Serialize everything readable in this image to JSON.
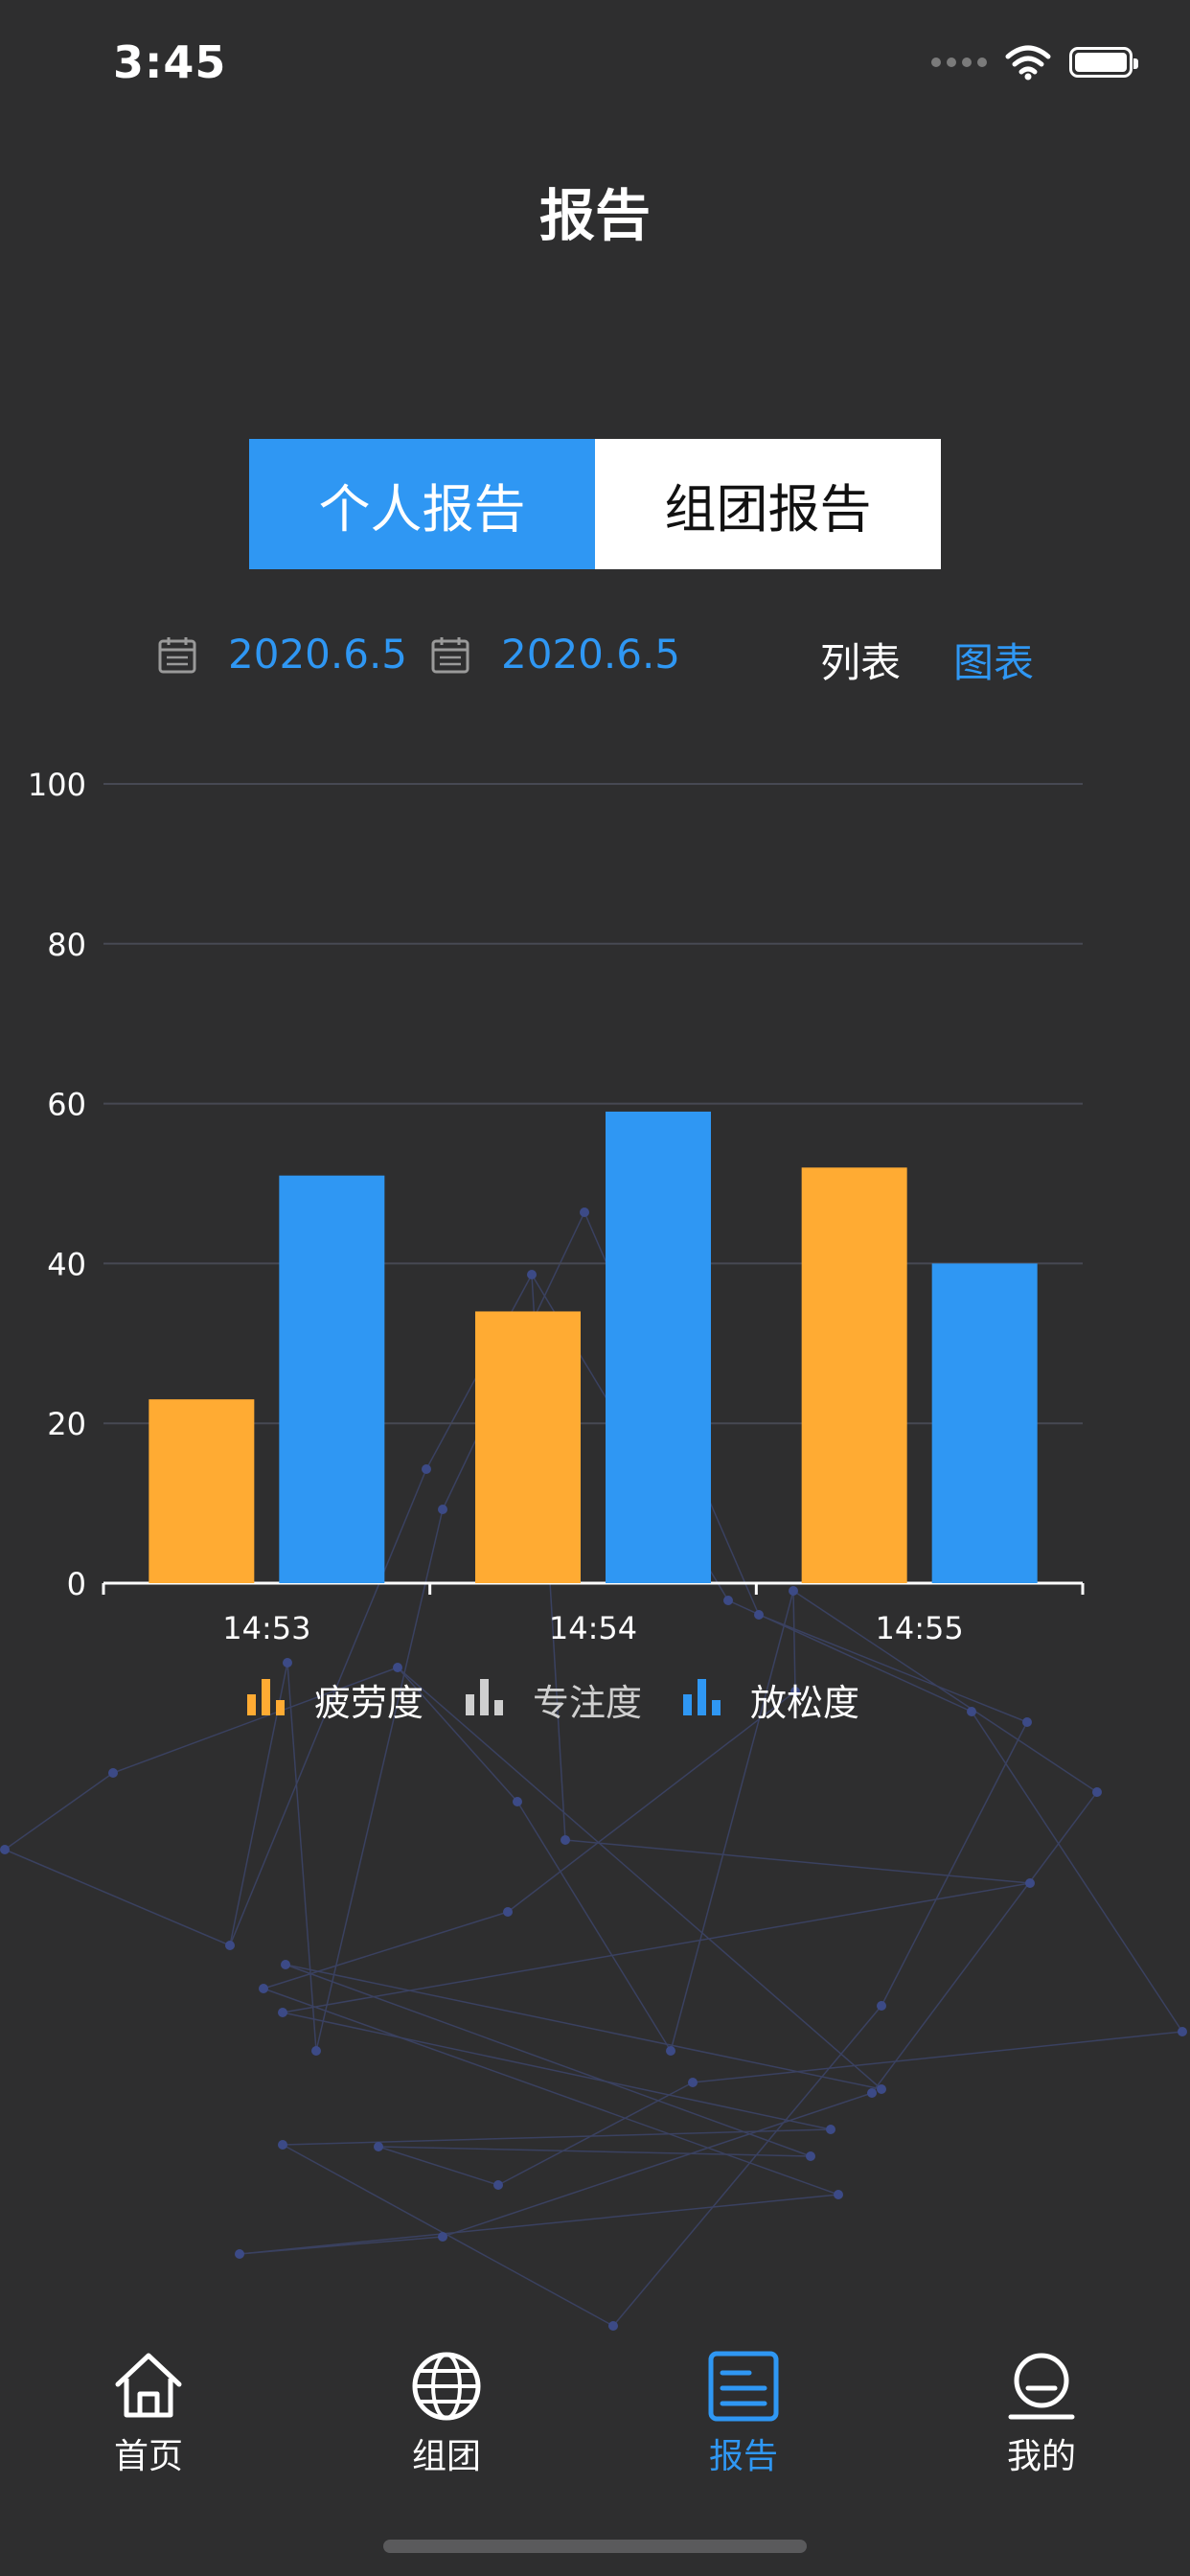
{
  "status_bar": {
    "time": "3:45"
  },
  "header": {
    "title": "报告"
  },
  "segmented": {
    "personal": "个人报告",
    "group": "组团报告",
    "active": "personal"
  },
  "date_range": {
    "start": "2020.6.5",
    "end": "2020.6.5"
  },
  "view_toggle": {
    "list": "列表",
    "chart": "图表",
    "active": "chart"
  },
  "colors": {
    "accent": "#2f97f3",
    "fatigue": "#ffab33",
    "focus": "#cfcfcf",
    "relax": "#2f97f3",
    "background": "#2e2e2f"
  },
  "chart_data": {
    "type": "bar",
    "categories": [
      "14:53",
      "14:54",
      "14:55"
    ],
    "series": [
      {
        "name": "疲劳度",
        "values": [
          23,
          34,
          52
        ]
      },
      {
        "name": "专注度",
        "values": [
          0,
          0,
          0
        ]
      },
      {
        "name": "放松度",
        "values": [
          51,
          59,
          40
        ]
      }
    ],
    "ylim": [
      0,
      100
    ],
    "yticks": [
      0,
      20,
      40,
      60,
      80,
      100
    ],
    "grid": true,
    "legend": "bottom",
    "title": "",
    "xlabel": "",
    "ylabel": ""
  },
  "tabbar": {
    "items": [
      {
        "label": "首页",
        "icon": "home-icon"
      },
      {
        "label": "组团",
        "icon": "globe-icon"
      },
      {
        "label": "报告",
        "icon": "report-icon"
      },
      {
        "label": "我的",
        "icon": "profile-icon"
      }
    ],
    "active": 2
  }
}
